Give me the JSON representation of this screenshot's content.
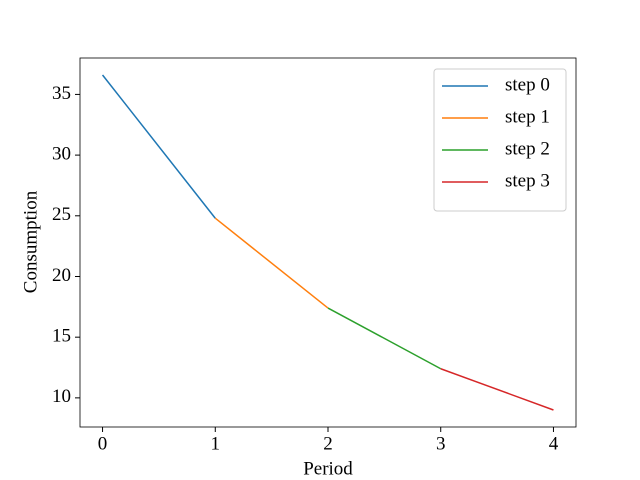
{
  "chart_data": {
    "type": "line",
    "x": [
      0,
      1,
      2,
      3,
      4
    ],
    "series": [
      {
        "name": "step 0",
        "color": "#1f77b4",
        "values": [
          36.6,
          24.8,
          null,
          null,
          null
        ]
      },
      {
        "name": "step 1",
        "color": "#ff7f0e",
        "values": [
          null,
          24.8,
          17.4,
          null,
          null
        ]
      },
      {
        "name": "step 2",
        "color": "#2ca02c",
        "values": [
          null,
          null,
          17.4,
          12.4,
          null
        ]
      },
      {
        "name": "step 3",
        "color": "#d62728",
        "values": [
          null,
          null,
          null,
          12.4,
          9.0
        ]
      }
    ],
    "x_label": "Period",
    "y_label": "Consumption",
    "xlim": [
      -0.2,
      4.2
    ],
    "ylim": [
      7.6,
      38.0
    ],
    "xticks": [
      0,
      1,
      2,
      3,
      4
    ],
    "yticks": [
      10,
      15,
      20,
      25,
      30,
      35
    ],
    "grid": false,
    "legend": "upper right"
  }
}
